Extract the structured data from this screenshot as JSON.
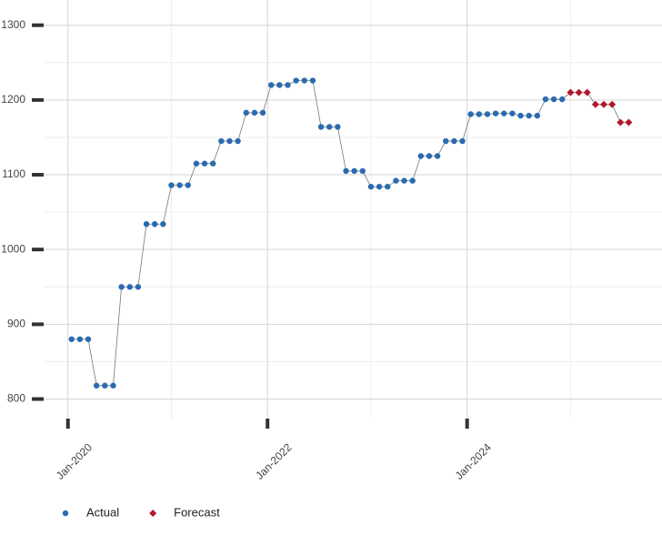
{
  "chart_data": {
    "type": "line",
    "x_actual": [
      "2020-01",
      "2020-02",
      "2020-03",
      "2020-04",
      "2020-05",
      "2020-06",
      "2020-07",
      "2020-08",
      "2020-09",
      "2020-10",
      "2020-11",
      "2020-12",
      "2021-01",
      "2021-02",
      "2021-03",
      "2021-04",
      "2021-05",
      "2021-06",
      "2021-07",
      "2021-08",
      "2021-09",
      "2021-10",
      "2021-11",
      "2021-12",
      "2022-01",
      "2022-02",
      "2022-03",
      "2022-04",
      "2022-05",
      "2022-06",
      "2022-07",
      "2022-08",
      "2022-09",
      "2022-10",
      "2022-11",
      "2022-12",
      "2023-01",
      "2023-02",
      "2023-03",
      "2023-04",
      "2023-05",
      "2023-06",
      "2023-07",
      "2023-08",
      "2023-09",
      "2023-10",
      "2023-11",
      "2023-12",
      "2024-01",
      "2024-02",
      "2024-03",
      "2024-04",
      "2024-05",
      "2024-06",
      "2024-07",
      "2024-08",
      "2024-09",
      "2024-10",
      "2024-11",
      "2024-12"
    ],
    "x_forecast": [
      "2025-01",
      "2025-02",
      "2025-03",
      "2025-04",
      "2025-05",
      "2025-06",
      "2025-07",
      "2025-08"
    ],
    "series": [
      {
        "name": "Actual",
        "color": "#2a6bb0",
        "marker": "circle",
        "x_key": "x_actual",
        "values": [
          880,
          880,
          880,
          818,
          818,
          818,
          950,
          950,
          950,
          1034,
          1034,
          1034,
          1086,
          1086,
          1086,
          1115,
          1115,
          1115,
          1145,
          1145,
          1145,
          1183,
          1183,
          1183,
          1220,
          1220,
          1220,
          1226,
          1226,
          1226,
          1164,
          1164,
          1164,
          1105,
          1105,
          1105,
          1084,
          1084,
          1084,
          1092,
          1092,
          1092,
          1125,
          1125,
          1125,
          1145,
          1145,
          1145,
          1181,
          1181,
          1181,
          1182,
          1182,
          1182,
          1179,
          1179,
          1179,
          1201,
          1201,
          1201
        ]
      },
      {
        "name": "Forecast",
        "color": "#b2182b",
        "marker": "diamond",
        "x_key": "x_forecast",
        "values": [
          1210,
          1210,
          1210,
          1194,
          1194,
          1194,
          1170,
          1170
        ]
      }
    ],
    "xlim": [
      "2019-08",
      "2025-12"
    ],
    "xticks": [
      {
        "value": "2020-01",
        "label": "Jan-2020"
      },
      {
        "value": "2022-01",
        "label": "Jan-2022"
      },
      {
        "value": "2024-01",
        "label": "Jan-2024"
      }
    ],
    "ylim": [
      786,
      1324
    ],
    "yticks": [
      800,
      900,
      1000,
      1100,
      1200,
      1300
    ],
    "grid": true
  }
}
